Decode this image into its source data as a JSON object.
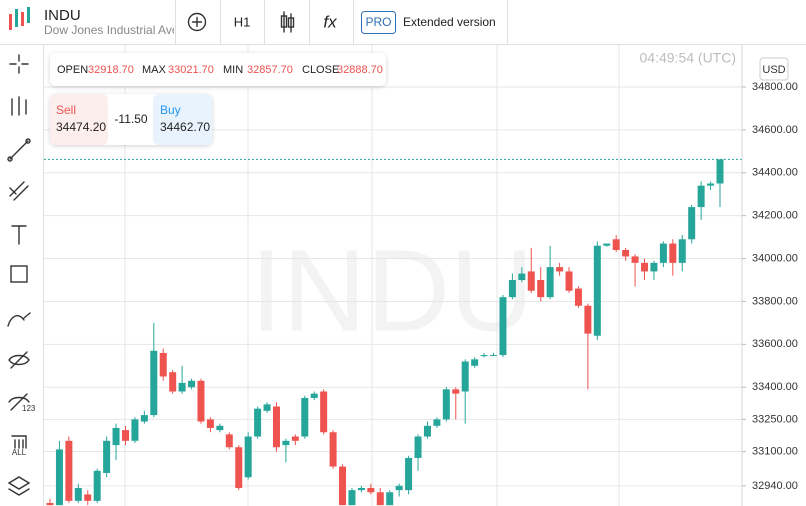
{
  "header": {
    "symbol": "INDU",
    "name": "Dow Jones Industrial Ave",
    "timeframe": "H1",
    "function_icon": "fx",
    "pro_badge": "PRO",
    "extended": "Extended version"
  },
  "sidebar": {
    "icon_labels": [
      "123",
      "ALL"
    ]
  },
  "ohlc": {
    "open_label": "OPEN",
    "open": "32918.70",
    "max_label": "MAX",
    "max": "33021.70",
    "min_label": "MIN",
    "min": "32857.70",
    "close_label": "CLOSE",
    "close": "32888.70"
  },
  "trade": {
    "sell_label": "Sell",
    "sell": "34474.20",
    "spread": "-11.50",
    "buy_label": "Buy",
    "buy": "34462.70"
  },
  "chart_data": {
    "type": "candlestick",
    "watermark": "INDU",
    "time": "04:49:54 (UTC)",
    "currency": "USD",
    "up_color": "#26a69a",
    "down_color": "#ef5350",
    "grid": true,
    "ylim": [
      32846,
      34996
    ],
    "yticks": [
      {
        "value": 34800,
        "label": "34800.00"
      },
      {
        "value": 34600,
        "label": "34600.00"
      },
      {
        "value": 34400,
        "label": "34400.00"
      },
      {
        "value": 34200,
        "label": "34200.00"
      },
      {
        "value": 34000,
        "label": "34000.00"
      },
      {
        "value": 33800,
        "label": "33800.00"
      },
      {
        "value": 33600,
        "label": "33600.00"
      },
      {
        "value": 33400,
        "label": "33400.00"
      },
      {
        "value": 33250,
        "label": "33250.00"
      },
      {
        "value": 33100,
        "label": "33100.00"
      },
      {
        "value": 32940,
        "label": "32940.00"
      }
    ],
    "open": [
      32860,
      32850,
      33150,
      32870,
      32900,
      32870,
      33000,
      33130,
      33200,
      33150,
      33240,
      33270,
      33560,
      33470,
      33380,
      33400,
      33430,
      33250,
      33200,
      33180,
      33120,
      32980,
      33170,
      33290,
      33310,
      33130,
      33170,
      33170,
      33350,
      33380,
      33190,
      33030,
      32850,
      32920,
      32930,
      32910,
      32850,
      32920,
      32920,
      33070,
      33170,
      33220,
      33250,
      33390,
      33380,
      33500,
      33545,
      33550,
      33550,
      33820,
      33900,
      33940,
      33900,
      33820,
      33960,
      33940,
      33860,
      33780,
      33640,
      34060,
      34090,
      34040,
      34010,
      33980,
      33940,
      33980,
      34070,
      33980,
      34090,
      34240,
      34340,
      34350
    ],
    "high": [
      32880,
      33150,
      33170,
      32950,
      32920,
      33020,
      33170,
      33230,
      33220,
      33260,
      33290,
      33700,
      33580,
      33480,
      33500,
      33440,
      33440,
      33260,
      33230,
      33190,
      33130,
      33190,
      33310,
      33330,
      33330,
      33160,
      33180,
      33360,
      33380,
      33390,
      33200,
      33040,
      32930,
      32940,
      32950,
      32930,
      32920,
      32950,
      33080,
      33180,
      33240,
      33260,
      33400,
      33400,
      33530,
      33540,
      33560,
      33560,
      33830,
      33930,
      33960,
      34050,
      33960,
      34060,
      33980,
      33960,
      33870,
      33790,
      34080,
      34070,
      34110,
      34050,
      34020,
      34000,
      33990,
      34080,
      34090,
      34110,
      34250,
      34360,
      34360,
      34460
    ],
    "low": [
      32850,
      32850,
      32860,
      32860,
      32850,
      32860,
      32980,
      33060,
      33130,
      33140,
      33230,
      33260,
      33430,
      33370,
      33370,
      33390,
      33230,
      33190,
      33190,
      33110,
      32920,
      32970,
      33160,
      33280,
      33100,
      33050,
      33130,
      33160,
      33340,
      33180,
      33020,
      32850,
      32850,
      32910,
      32900,
      32850,
      32850,
      32890,
      32900,
      33010,
      33160,
      33210,
      33240,
      33250,
      33230,
      33490,
      33540,
      33545,
      33540,
      33810,
      33890,
      33840,
      33800,
      33810,
      33920,
      33840,
      33770,
      33390,
      33620,
      34055,
      34030,
      33990,
      33870,
      33900,
      33900,
      33960,
      33920,
      33940,
      34070,
      34180,
      34320,
      34240
    ],
    "close": [
      32850,
      33110,
      32870,
      32930,
      32870,
      33010,
      33150,
      33210,
      33150,
      33250,
      33270,
      33570,
      33450,
      33380,
      33420,
      33430,
      33240,
      33210,
      33220,
      33120,
      32930,
      33170,
      33300,
      33320,
      33120,
      33150,
      33150,
      33350,
      33370,
      33190,
      33030,
      32850,
      32920,
      32930,
      32910,
      32850,
      32910,
      32940,
      33070,
      33170,
      33220,
      33250,
      33390,
      33370,
      33520,
      33530,
      33550,
      33550,
      33820,
      33900,
      33930,
      33850,
      33820,
      33960,
      33940,
      33850,
      33780,
      33650,
      34060,
      34070,
      34040,
      34010,
      33980,
      33940,
      33980,
      34070,
      33980,
      34090,
      34240,
      34340,
      34350,
      34462.7
    ]
  }
}
